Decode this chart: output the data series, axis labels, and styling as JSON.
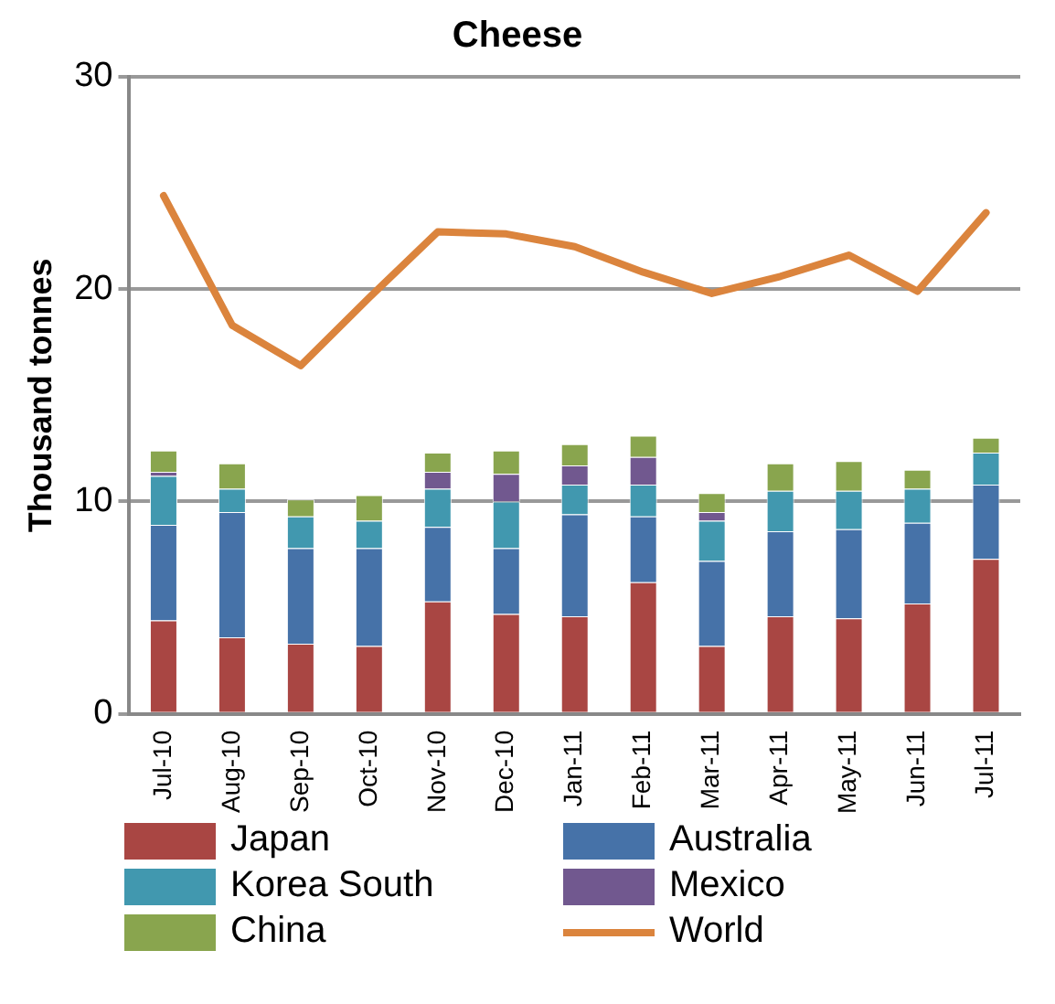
{
  "chart_data": {
    "type": "bar",
    "title": "Cheese",
    "ylabel": "Thousand tonnes",
    "stacked": true,
    "legend": "bottom",
    "grid": "y",
    "categories": [
      "Jul-10",
      "Aug-10",
      "Sep-10",
      "Oct-10",
      "Nov-10",
      "Dec-10",
      "Jan-11",
      "Feb-11",
      "Mar-11",
      "Apr-11",
      "May-11",
      "Jun-11",
      "Jul-11"
    ],
    "ylim": [
      0,
      30
    ],
    "yticks": [
      0,
      10,
      20,
      30
    ],
    "series": [
      {
        "name": "Japan",
        "color": "#a94643",
        "values": [
          4.4,
          3.6,
          3.3,
          3.2,
          5.3,
          4.7,
          4.6,
          6.2,
          3.2,
          4.6,
          4.5,
          5.2,
          7.3
        ]
      },
      {
        "name": "Australia",
        "color": "#4672a8",
        "values": [
          4.5,
          5.9,
          4.5,
          4.6,
          3.5,
          3.1,
          4.8,
          3.1,
          4.0,
          4.0,
          4.2,
          3.8,
          3.5
        ]
      },
      {
        "name": "Korea South",
        "color": "#4198af",
        "values": [
          2.3,
          1.1,
          1.5,
          1.3,
          1.8,
          2.2,
          1.4,
          1.5,
          1.9,
          1.9,
          1.8,
          1.6,
          1.5
        ]
      },
      {
        "name": "Mexico",
        "color": "#71588f",
        "values": [
          0.2,
          0,
          0,
          0,
          0.8,
          1.3,
          0.9,
          1.3,
          0.4,
          0,
          0,
          0,
          0
        ]
      },
      {
        "name": "China",
        "color": "#89a54e",
        "values": [
          1.0,
          1.2,
          0.8,
          1.2,
          0.9,
          1.1,
          1.0,
          1.0,
          0.9,
          1.3,
          1.4,
          0.9,
          0.7
        ]
      },
      {
        "name": "World",
        "type": "line",
        "color": "#db843d",
        "values": [
          24.4,
          18.3,
          16.4,
          19.6,
          22.7,
          22.6,
          22.0,
          20.8,
          19.8,
          20.6,
          21.6,
          19.9,
          23.6
        ]
      }
    ]
  }
}
